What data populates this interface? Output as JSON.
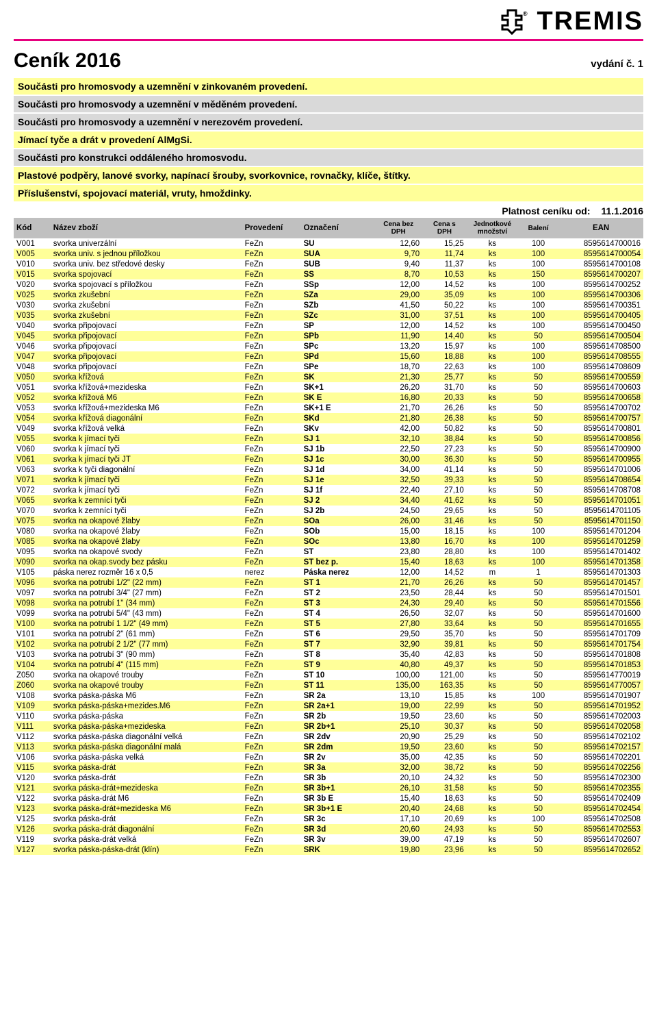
{
  "brand": {
    "name": "TREMIS",
    "rule_color": "#e6007e"
  },
  "page_title": "Ceník 2016",
  "edition": "vydání č. 1",
  "validity_label": "Platnost ceníku od:",
  "validity_date": "11.1.2016",
  "sections": [
    {
      "text": "Součásti pro hromosvody a uzemnění v zinkovaném provedení.",
      "bg": "#ffff99"
    },
    {
      "text": "Součásti pro hromosvody a uzemnění v měděném provedení.",
      "bg": "#d9d9d9"
    },
    {
      "text": "Součásti pro hromosvody a uzemnění v nerezovém provedení.",
      "bg": "#d9d9d9"
    },
    {
      "text": "Jímací tyče a drát v provedení AlMgSi.",
      "bg": "#ffff99"
    },
    {
      "text": "Součásti pro konstrukci oddáleného hromosvodu.",
      "bg": "#d9d9d9"
    },
    {
      "text": "Plastové podpěry, lanové svorky, napínací šrouby, svorkovnice, rovnačky, klíče, štítky.",
      "bg": "#ffff99"
    },
    {
      "text": "Příslušenství, spojovací materiál, vruty, hmoždinky.",
      "bg": "#ffff99"
    }
  ],
  "headers": {
    "kod": "Kód",
    "nazev": "Název zboží",
    "provedeni": "Provedení",
    "oznaceni": "Označení",
    "cena_bez": "Cena bez DPH",
    "cena_s": "Cena s DPH",
    "jednotkove": "Jednotkové množství",
    "baleni": "Balení",
    "ean": "EAN"
  },
  "rows": [
    [
      "V001",
      "svorka univerzální",
      "FeZn",
      "SU",
      "12,60",
      "15,25",
      "ks",
      "100",
      "8595614700016"
    ],
    [
      "V005",
      "svorka univ. s jednou příložkou",
      "FeZn",
      "SUA",
      "9,70",
      "11,74",
      "ks",
      "100",
      "8595614700054"
    ],
    [
      "V010",
      "svorka univ. bez středové desky",
      "FeZn",
      "SUB",
      "9,40",
      "11,37",
      "ks",
      "100",
      "8595614700108"
    ],
    [
      "V015",
      "svorka spojovací",
      "FeZn",
      "SS",
      "8,70",
      "10,53",
      "ks",
      "150",
      "8595614700207"
    ],
    [
      "V020",
      "svorka spojovací s příložkou",
      "FeZn",
      "SSp",
      "12,00",
      "14,52",
      "ks",
      "100",
      "8595614700252"
    ],
    [
      "V025",
      "svorka zkušební",
      "FeZn",
      "SZa",
      "29,00",
      "35,09",
      "ks",
      "100",
      "8595614700306"
    ],
    [
      "V030",
      "svorka zkušební",
      "FeZn",
      "SZb",
      "41,50",
      "50,22",
      "ks",
      "100",
      "8595614700351"
    ],
    [
      "V035",
      "svorka zkušební",
      "FeZn",
      "SZc",
      "31,00",
      "37,51",
      "ks",
      "100",
      "8595614700405"
    ],
    [
      "V040",
      "svorka připojovací",
      "FeZn",
      "SP",
      "12,00",
      "14,52",
      "ks",
      "100",
      "8595614700450"
    ],
    [
      "V045",
      "svorka připojovací",
      "FeZn",
      "SPb",
      "11,90",
      "14,40",
      "ks",
      "50",
      "8595614700504"
    ],
    [
      "V046",
      "svorka připojovací",
      "FeZn",
      "SPc",
      "13,20",
      "15,97",
      "ks",
      "100",
      "8595614708500"
    ],
    [
      "V047",
      "svorka připojovací",
      "FeZn",
      "SPd",
      "15,60",
      "18,88",
      "ks",
      "100",
      "8595614708555"
    ],
    [
      "V048",
      "svorka připojovací",
      "FeZn",
      "SPe",
      "18,70",
      "22,63",
      "ks",
      "100",
      "8595614708609"
    ],
    [
      "V050",
      "svorka křížová",
      "FeZn",
      "SK",
      "21,30",
      "25,77",
      "ks",
      "50",
      "8595614700559"
    ],
    [
      "V051",
      "svorka křížová+mezideska",
      "FeZn",
      "SK+1",
      "26,20",
      "31,70",
      "ks",
      "50",
      "8595614700603"
    ],
    [
      "V052",
      "svorka křížová M6",
      "FeZn",
      "SK E",
      "16,80",
      "20,33",
      "ks",
      "50",
      "8595614700658"
    ],
    [
      "V053",
      "svorka křížová+mezideska M6",
      "FeZn",
      "SK+1 E",
      "21,70",
      "26,26",
      "ks",
      "50",
      "8595614700702"
    ],
    [
      "V054",
      "svorka křížová diagonální",
      "FeZn",
      "SKd",
      "21,80",
      "26,38",
      "ks",
      "50",
      "8595614700757"
    ],
    [
      "V049",
      "svorka křížová velká",
      "FeZn",
      "SKv",
      "42,00",
      "50,82",
      "ks",
      "50",
      "8595614700801"
    ],
    [
      "V055",
      "svorka k jímací tyči",
      "FeZn",
      "SJ 1",
      "32,10",
      "38,84",
      "ks",
      "50",
      "8595614700856"
    ],
    [
      "V060",
      "svorka k jímací tyči",
      "FeZn",
      "SJ 1b",
      "22,50",
      "27,23",
      "ks",
      "50",
      "8595614700900"
    ],
    [
      "V061",
      "svorka k jímací tyči JT",
      "FeZn",
      "SJ 1c",
      "30,00",
      "36,30",
      "ks",
      "50",
      "8595614700955"
    ],
    [
      "V063",
      "svorka k tyči diagonální",
      "FeZn",
      "SJ 1d",
      "34,00",
      "41,14",
      "ks",
      "50",
      "8595614701006"
    ],
    [
      "V071",
      "svorka k jímací tyči",
      "FeZn",
      "SJ 1e",
      "32,50",
      "39,33",
      "ks",
      "50",
      "8595614708654"
    ],
    [
      "V072",
      "svorka k jímací tyči",
      "FeZn",
      "SJ 1f",
      "22,40",
      "27,10",
      "ks",
      "50",
      "8595614708708"
    ],
    [
      "V065",
      "svorka k zemnící tyči",
      "FeZn",
      "SJ 2",
      "34,40",
      "41,62",
      "ks",
      "50",
      "8595614701051"
    ],
    [
      "V070",
      "svorka k zemnící tyči",
      "FeZn",
      "SJ 2b",
      "24,50",
      "29,65",
      "ks",
      "50",
      "8595614701105"
    ],
    [
      "V075",
      "svorka na okapové žlaby",
      "FeZn",
      "SOa",
      "26,00",
      "31,46",
      "ks",
      "50",
      "8595614701150"
    ],
    [
      "V080",
      "svorka na okapové žlaby",
      "FeZn",
      "SOb",
      "15,00",
      "18,15",
      "ks",
      "100",
      "8595614701204"
    ],
    [
      "V085",
      "svorka na okapové žlaby",
      "FeZn",
      "SOc",
      "13,80",
      "16,70",
      "ks",
      "100",
      "8595614701259"
    ],
    [
      "V095",
      "svorka na okapové svody",
      "FeZn",
      "ST",
      "23,80",
      "28,80",
      "ks",
      "100",
      "8595614701402"
    ],
    [
      "V090",
      "svorka na okap.svody bez pásku",
      "FeZn",
      "ST bez p.",
      "15,40",
      "18,63",
      "ks",
      "100",
      "8595614701358"
    ],
    [
      "V105",
      "páska nerez rozměr 16 x 0,5",
      "nerez",
      "Páska nerez",
      "12,00",
      "14,52",
      "m",
      "1",
      "8595614701303"
    ],
    [
      "V096",
      "svorka na potrubí 1/2\"    (22 mm)",
      "FeZn",
      "ST 1",
      "21,70",
      "26,26",
      "ks",
      "50",
      "8595614701457"
    ],
    [
      "V097",
      "svorka na potrubí 3/4\"    (27 mm)",
      "FeZn",
      "ST 2",
      "23,50",
      "28,44",
      "ks",
      "50",
      "8595614701501"
    ],
    [
      "V098",
      "svorka na potrubí 1\"       (34 mm)",
      "FeZn",
      "ST 3",
      "24,30",
      "29,40",
      "ks",
      "50",
      "8595614701556"
    ],
    [
      "V099",
      "svorka na potrubí 5/4\"    (43 mm)",
      "FeZn",
      "ST 4",
      "26,50",
      "32,07",
      "ks",
      "50",
      "8595614701600"
    ],
    [
      "V100",
      "svorka na potrubí 1 1/2\"  (49 mm)",
      "FeZn",
      "ST 5",
      "27,80",
      "33,64",
      "ks",
      "50",
      "8595614701655"
    ],
    [
      "V101",
      "svorka na potrubí 2\"       (61 mm)",
      "FeZn",
      "ST 6",
      "29,50",
      "35,70",
      "ks",
      "50",
      "8595614701709"
    ],
    [
      "V102",
      "svorka na potrubí 2 1/2\"  (77 mm)",
      "FeZn",
      "ST 7",
      "32,90",
      "39,81",
      "ks",
      "50",
      "8595614701754"
    ],
    [
      "V103",
      "svorka na potrubí 3\"       (90 mm)",
      "FeZn",
      "ST 8",
      "35,40",
      "42,83",
      "ks",
      "50",
      "8595614701808"
    ],
    [
      "V104",
      "svorka na potrubí 4\"      (115 mm)",
      "FeZn",
      "ST 9",
      "40,80",
      "49,37",
      "ks",
      "50",
      "8595614701853"
    ],
    [
      "Z050",
      "svorka na okapové trouby",
      "FeZn",
      "ST 10",
      "100,00",
      "121,00",
      "ks",
      "50",
      "8595614770019"
    ],
    [
      "Z060",
      "svorka na okapové trouby",
      "FeZn",
      "ST 11",
      "135,00",
      "163,35",
      "ks",
      "50",
      "8595614770057"
    ],
    [
      "V108",
      "svorka páska-páska M6",
      "FeZn",
      "SR 2a",
      "13,10",
      "15,85",
      "ks",
      "100",
      "8595614701907"
    ],
    [
      "V109",
      "svorka páska-páska+mezides.M6",
      "FeZn",
      "SR 2a+1",
      "19,00",
      "22,99",
      "ks",
      "50",
      "8595614701952"
    ],
    [
      "V110",
      "svorka páska-páska",
      "FeZn",
      "SR 2b",
      "19,50",
      "23,60",
      "ks",
      "50",
      "8595614702003"
    ],
    [
      "V111",
      "svorka páska-páska+mezideska",
      "FeZn",
      "SR 2b+1",
      "25,10",
      "30,37",
      "ks",
      "50",
      "8595614702058"
    ],
    [
      "V112",
      "svorka páska-páska diagonální velká",
      "FeZn",
      "SR 2dv",
      "20,90",
      "25,29",
      "ks",
      "50",
      "8595614702102"
    ],
    [
      "V113",
      "svorka páska-páska diagonální malá",
      "FeZn",
      "SR 2dm",
      "19,50",
      "23,60",
      "ks",
      "50",
      "8595614702157"
    ],
    [
      "V106",
      "svorka páska-páska velká",
      "FeZn",
      "SR 2v",
      "35,00",
      "42,35",
      "ks",
      "50",
      "8595614702201"
    ],
    [
      "V115",
      "svorka páska-drát",
      "FeZn",
      "SR 3a",
      "32,00",
      "38,72",
      "ks",
      "50",
      "8595614702256"
    ],
    [
      "V120",
      "svorka páska-drát",
      "FeZn",
      "SR 3b",
      "20,10",
      "24,32",
      "ks",
      "50",
      "8595614702300"
    ],
    [
      "V121",
      "svorka páska-drát+mezideska",
      "FeZn",
      "SR 3b+1",
      "26,10",
      "31,58",
      "ks",
      "50",
      "8595614702355"
    ],
    [
      "V122",
      "svorka páska-drát M6",
      "FeZn",
      "SR 3b E",
      "15,40",
      "18,63",
      "ks",
      "50",
      "8595614702409"
    ],
    [
      "V123",
      "svorka páska-drát+mezideska M6",
      "FeZn",
      "SR 3b+1 E",
      "20,40",
      "24,68",
      "ks",
      "50",
      "8595614702454"
    ],
    [
      "V125",
      "svorka páska-drát",
      "FeZn",
      "SR 3c",
      "17,10",
      "20,69",
      "ks",
      "100",
      "8595614702508"
    ],
    [
      "V126",
      "svorka páska-drát diagonální",
      "FeZn",
      "SR 3d",
      "20,60",
      "24,93",
      "ks",
      "50",
      "8595614702553"
    ],
    [
      "V119",
      "svorka páska-drát velká",
      "FeZn",
      "SR 3v",
      "39,00",
      "47,19",
      "ks",
      "50",
      "8595614702607"
    ],
    [
      "V127",
      "svorka páska-páska-drát (klín)",
      "FeZn",
      "SRK",
      "19,80",
      "23,96",
      "ks",
      "50",
      "8595614702652"
    ]
  ]
}
